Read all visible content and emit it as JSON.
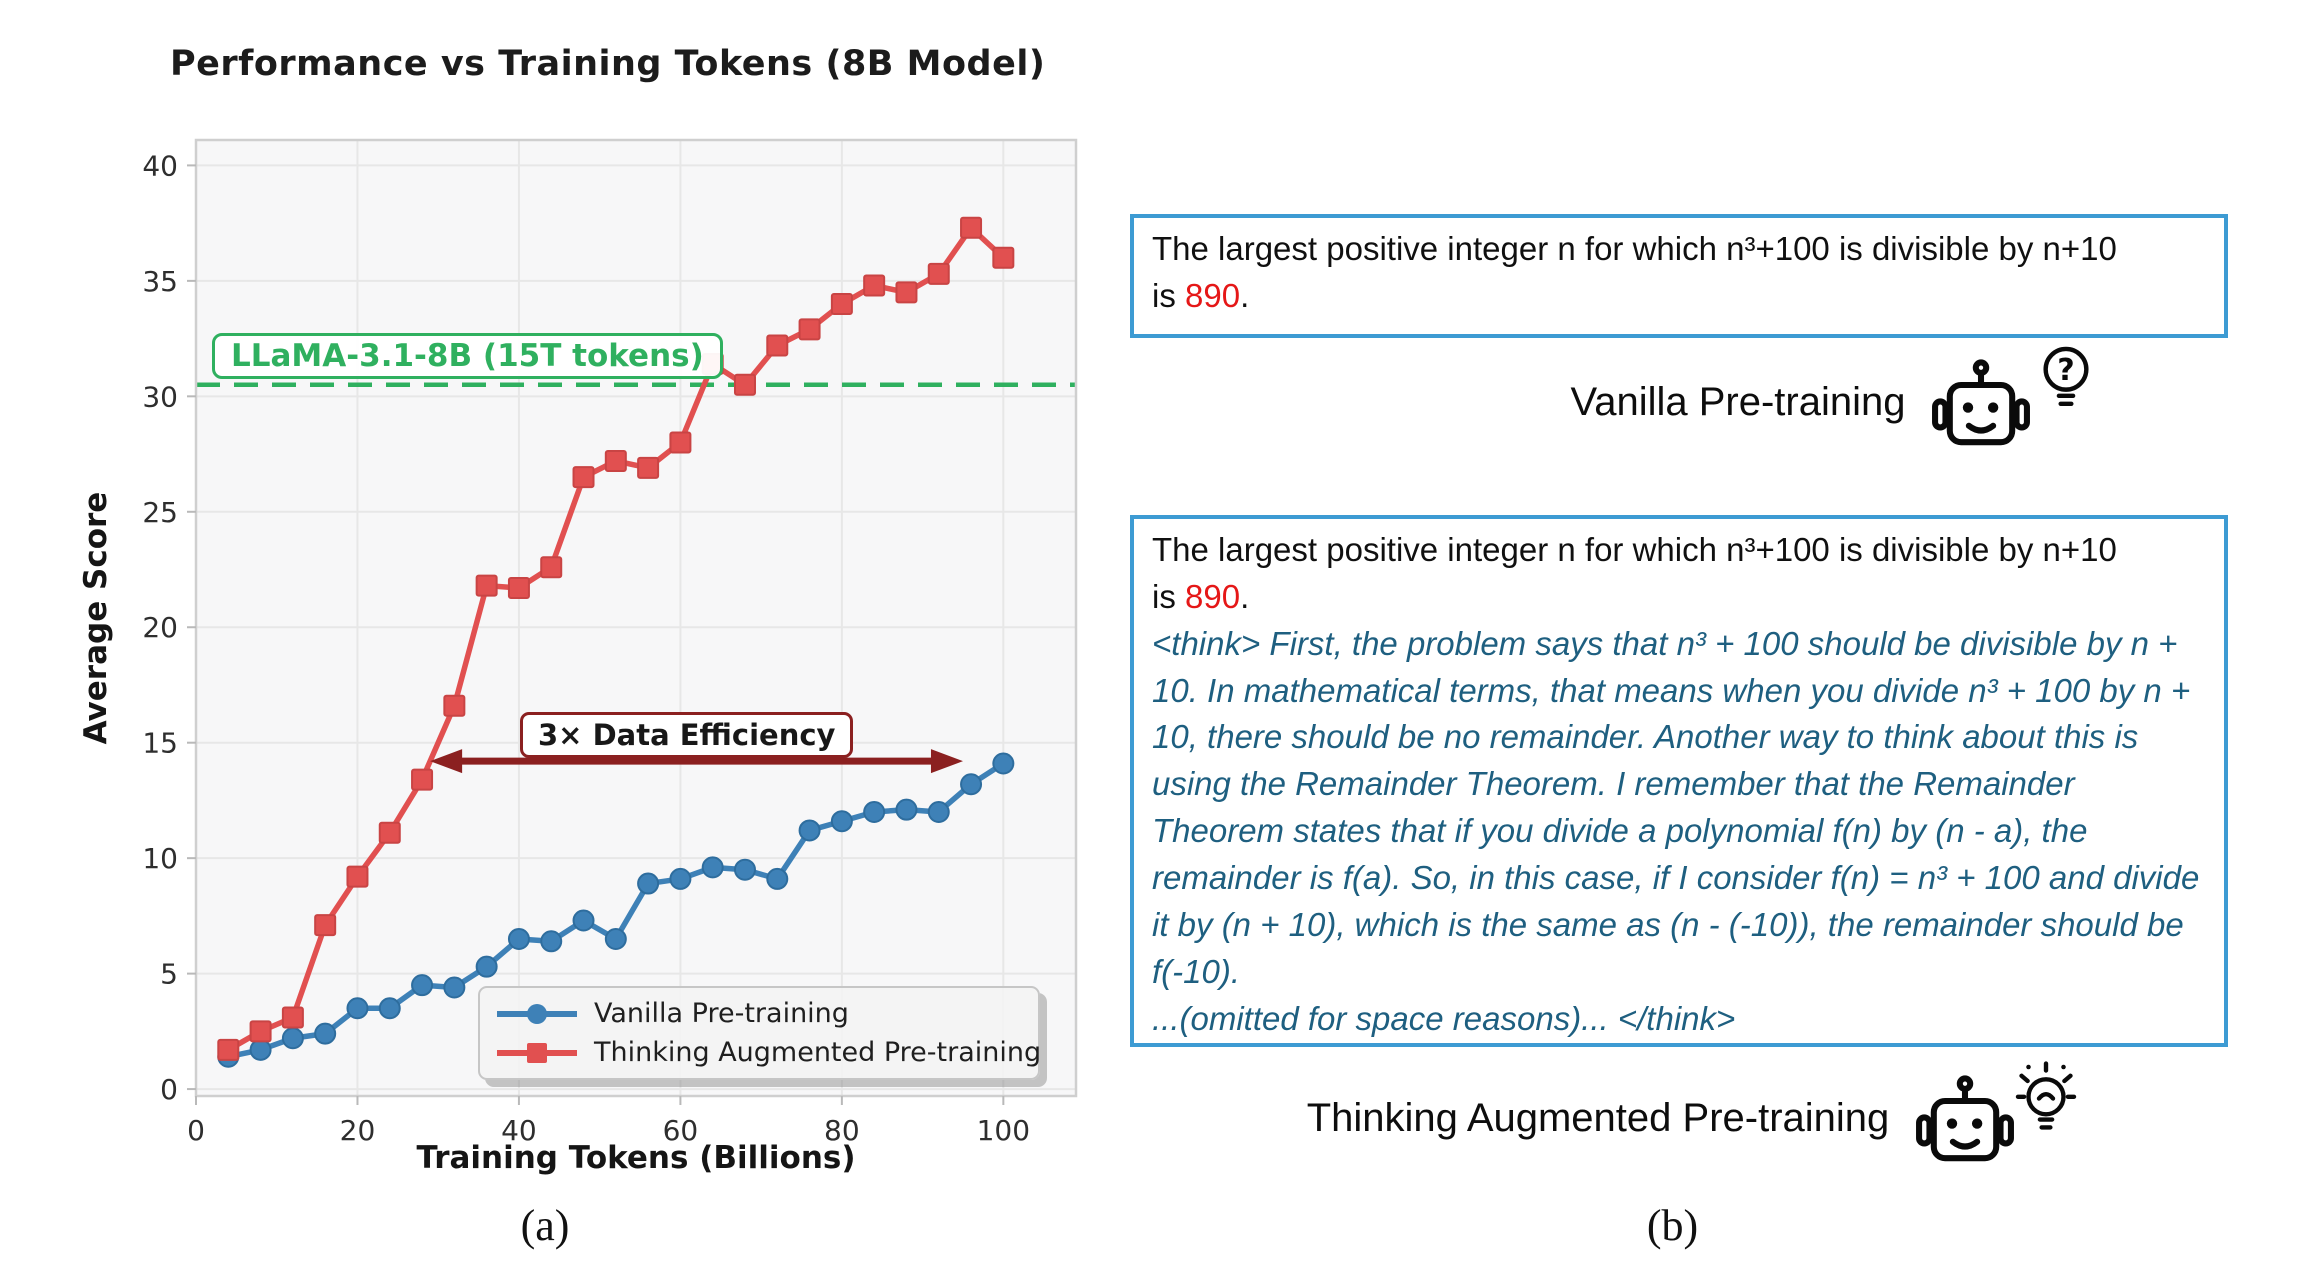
{
  "figure": {
    "caption_a": "(a)",
    "caption_b": "(b)"
  },
  "colors": {
    "box_border_blue": "#3d9bd3",
    "think_text": "#1e5f80",
    "answer_red": "#e51717",
    "reference_green": "#2fb05f",
    "annotation_darkred": "#8b2020"
  },
  "chart_data": {
    "type": "line",
    "title": "Performance vs Training Tokens (8B Model)",
    "xlabel": "Training Tokens (Billions)",
    "ylabel": "Average Score",
    "x": [
      4,
      8,
      12,
      16,
      20,
      24,
      28,
      32,
      36,
      40,
      44,
      48,
      52,
      56,
      60,
      64,
      68,
      72,
      76,
      80,
      84,
      88,
      92,
      96,
      100
    ],
    "series": [
      {
        "name": "Vanilla Pre-training",
        "color": "#3e81b7",
        "edge": "#2e6d9e",
        "marker": "circle",
        "values": [
          1.4,
          1.7,
          2.2,
          2.4,
          3.5,
          3.5,
          4.5,
          4.4,
          5.3,
          6.5,
          6.4,
          7.3,
          6.5,
          8.9,
          9.1,
          9.6,
          9.5,
          9.1,
          11.2,
          11.6,
          12.0,
          12.1,
          12.0,
          13.2,
          14.1
        ]
      },
      {
        "name": "Thinking Augmented Pre-training",
        "color": "#e15050",
        "edge": "#c94444",
        "marker": "square",
        "values": [
          1.7,
          2.5,
          3.1,
          7.1,
          9.2,
          11.1,
          13.4,
          16.6,
          21.8,
          21.7,
          22.6,
          26.5,
          27.2,
          26.9,
          28.0,
          31.4,
          30.5,
          32.2,
          32.9,
          34.0,
          34.8,
          34.5,
          35.3,
          37.3,
          36.0
        ]
      }
    ],
    "xticks": [
      0,
      20,
      40,
      60,
      80,
      100
    ],
    "yticks": [
      0,
      5,
      10,
      15,
      20,
      25,
      30,
      35,
      40
    ],
    "xlim": [
      0,
      109
    ],
    "ylim": [
      -0.3,
      41.1
    ],
    "grid": true,
    "legend_position": "lower right",
    "reference_line": {
      "label": "LLaMA-3.1-8B (15T tokens)",
      "value": 30.5,
      "color": "#2fb05f",
      "style": "dashed"
    },
    "annotation": {
      "label": "3× Data Efficiency",
      "arrow_y": 14.2,
      "arrow_from_x": 29,
      "arrow_to_x": 95,
      "color": "#8b2020"
    }
  },
  "panel_b": {
    "question": {
      "line1": "The largest positive integer n for which n³+100 is divisible by n+10",
      "line2_prefix": "is ",
      "answer": "890",
      "line2_suffix": "."
    },
    "vanilla": {
      "label": "Vanilla Pre-training"
    },
    "tap": {
      "label": "Thinking Augmented Pre-training",
      "think_text": "<think> First, the problem says that n³ + 100 should be divisible by n + 10. In mathematical terms, that means when you divide n³ + 100 by n + 10, there should be no remainder. Another way to think about this is using the Remainder Theorem. I remember that the Remainder Theorem states that if you divide a polynomial f(n) by (n - a), the remainder is f(a). So, in this case, if I consider f(n) = n³ + 100 and divide it by (n + 10), which is the same as (n - (-10)), the remainder should be f(-10).",
      "think_footer": "...(omitted for space reasons)... </think>"
    },
    "icons": {
      "vanilla_robot": "robot-icon",
      "vanilla_bulb": "question-bulb-icon",
      "tap_robot": "robot-icon",
      "tap_bulb": "lightbulb-rays-icon"
    }
  }
}
